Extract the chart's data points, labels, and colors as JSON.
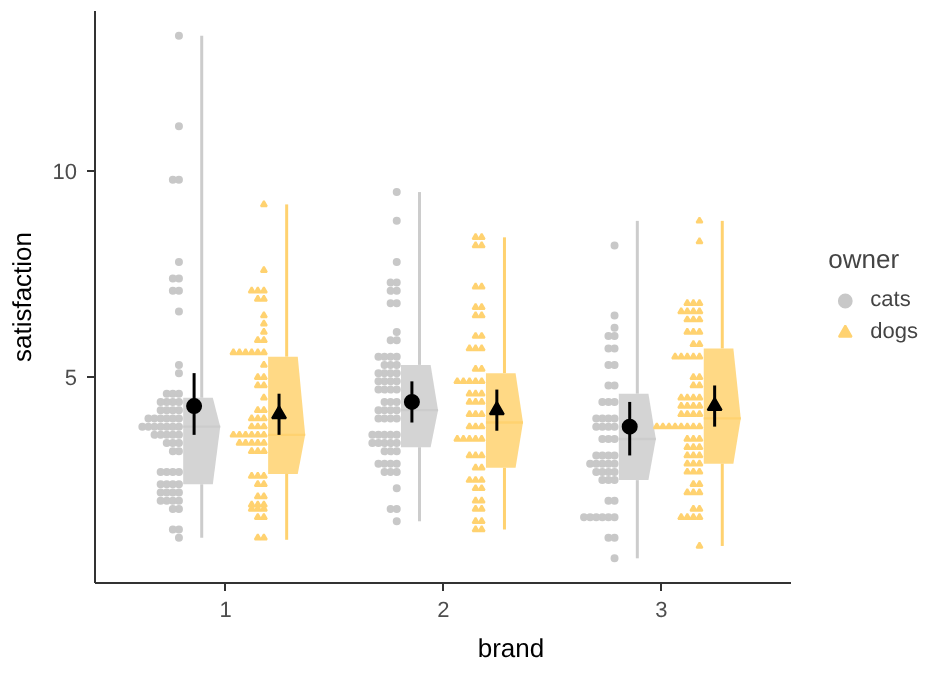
{
  "chart_data": {
    "type": "scatter",
    "xlabel": "brand",
    "ylabel": "satisfaction",
    "legend_title": "owner",
    "legend": "right",
    "grid": false,
    "categories": [
      "1",
      "2",
      "3"
    ],
    "ylim": [
      0,
      13.9
    ],
    "yticks": [
      5,
      10
    ],
    "series": [
      {
        "type": "box",
        "color": "#cccccc",
        "boxes": [
          {
            "low": 1.1,
            "q1": 2.4,
            "median": 3.8,
            "q3": 4.5,
            "high": 13.3
          },
          {
            "low": 1.5,
            "q1": 3.3,
            "median": 4.2,
            "q3": 5.3,
            "high": 9.5
          },
          {
            "low": 0.6,
            "q1": 2.5,
            "median": 3.5,
            "q3": 4.6,
            "high": 8.8
          }
        ]
      },
      {
        "type": "box",
        "color": "#ffd270",
        "boxes": [
          {
            "low": 1.05,
            "q1": 2.65,
            "median": 3.6,
            "q3": 5.5,
            "high": 9.2
          },
          {
            "low": 1.3,
            "q1": 2.8,
            "median": 3.9,
            "q3": 5.1,
            "high": 8.4
          },
          {
            "low": 0.9,
            "q1": 2.9,
            "median": 4.0,
            "q3": 5.7,
            "high": 8.8
          }
        ]
      },
      {
        "name": "cats",
        "color": "#c8c8c8",
        "marker": "circle",
        "values": [
          13.3,
          11.1,
          9.8,
          9.8,
          7.8,
          7.4,
          7.4,
          7.1,
          7.1,
          6.6,
          5.3,
          5.1,
          4.6,
          4.6,
          4.6,
          4.4,
          4.4,
          4.4,
          4.4,
          4.2,
          4.2,
          4.2,
          4.2,
          4.0,
          4.0,
          4.0,
          4.0,
          4.0,
          4.0,
          3.8,
          3.8,
          3.8,
          3.8,
          3.8,
          3.8,
          3.8,
          3.6,
          3.6,
          3.6,
          3.6,
          3.6,
          3.4,
          3.4,
          3.4,
          3.2,
          3.2,
          2.7,
          2.7,
          2.7,
          2.7,
          2.4,
          2.4,
          2.4,
          2.4,
          2.2,
          2.2,
          2.2,
          2.2,
          2.0,
          2.0,
          2.0,
          2.0,
          1.8,
          1.8,
          1.3,
          1.3,
          1.1,
          9.5,
          7.8,
          7.3,
          7.3,
          7.1,
          7.1,
          6.8,
          6.8,
          6.1,
          5.9,
          5.9,
          5.5,
          5.5,
          5.5,
          5.5,
          5.3,
          5.3,
          5.3,
          5.1,
          5.1,
          5.1,
          5.1,
          4.9,
          4.9,
          4.9,
          4.9,
          4.7,
          4.7,
          4.7,
          4.7,
          4.4,
          4.4,
          4.4,
          4.2,
          4.2,
          4.2,
          4.2,
          4.0,
          4.0,
          4.0,
          4.0,
          3.6,
          3.6,
          3.6,
          3.6,
          3.6,
          3.4,
          3.4,
          3.4,
          3.4,
          3.4,
          3.2,
          3.2,
          3.2,
          2.9,
          2.9,
          2.9,
          2.9,
          2.7,
          2.7,
          2.7,
          2.3,
          1.8,
          1.8,
          1.5,
          8.8,
          8.2,
          6.5,
          6.2,
          6.0,
          6.0,
          5.7,
          5.7,
          5.3,
          5.3,
          4.8,
          4.8,
          4.4,
          4.4,
          4.4,
          4.0,
          4.0,
          4.0,
          4.0,
          3.8,
          3.8,
          3.8,
          3.8,
          3.5,
          3.5,
          3.5,
          3.1,
          3.1,
          3.1,
          3.1,
          2.9,
          2.9,
          2.9,
          2.9,
          2.9,
          2.7,
          2.7,
          2.7,
          2.7,
          2.5,
          2.5,
          2.5,
          2.0,
          2.0,
          1.6,
          1.6,
          1.6,
          1.6,
          1.6,
          1.6,
          1.1,
          1.1,
          0.6
        ],
        "x": [
          "1",
          "1",
          "1",
          "1",
          "1",
          "1",
          "1",
          "1",
          "1",
          "1",
          "1",
          "1",
          "1",
          "1",
          "1",
          "1",
          "1",
          "1",
          "1",
          "1",
          "1",
          "1",
          "1",
          "1",
          "1",
          "1",
          "1",
          "1",
          "1",
          "1",
          "1",
          "1",
          "1",
          "1",
          "1",
          "1",
          "1",
          "1",
          "1",
          "1",
          "1",
          "1",
          "1",
          "1",
          "1",
          "1",
          "1",
          "1",
          "1",
          "1",
          "1",
          "1",
          "1",
          "1",
          "1",
          "1",
          "1",
          "1",
          "1",
          "1",
          "1",
          "1",
          "1",
          "1",
          "1",
          "1",
          "1",
          "2",
          "2",
          "2",
          "2",
          "2",
          "2",
          "2",
          "2",
          "2",
          "2",
          "2",
          "2",
          "2",
          "2",
          "2",
          "2",
          "2",
          "2",
          "2",
          "2",
          "2",
          "2",
          "2",
          "2",
          "2",
          "2",
          "2",
          "2",
          "2",
          "2",
          "2",
          "2",
          "2",
          "2",
          "2",
          "2",
          "2",
          "2",
          "2",
          "2",
          "2",
          "2",
          "2",
          "2",
          "2",
          "2",
          "2",
          "2",
          "2",
          "2",
          "2",
          "2",
          "2",
          "2",
          "2",
          "2",
          "2",
          "2",
          "2",
          "2",
          "2",
          "2",
          "2",
          "2",
          "2",
          "2",
          "3",
          "3",
          "3",
          "3",
          "3",
          "3",
          "3",
          "3",
          "3",
          "3",
          "3",
          "3",
          "3",
          "3",
          "3",
          "3",
          "3",
          "3",
          "3",
          "3",
          "3",
          "3",
          "3",
          "3",
          "3",
          "3",
          "3",
          "3",
          "3",
          "3",
          "3",
          "3",
          "3",
          "3",
          "3",
          "3",
          "3",
          "3",
          "3",
          "3",
          "3",
          "3",
          "3",
          "3",
          "3",
          "3",
          "3",
          "3",
          "3",
          "3",
          "3",
          "3"
        ]
      },
      {
        "name": "dogs",
        "color": "#ffd270",
        "marker": "triangle",
        "values": [
          9.2,
          7.6,
          7.1,
          7.1,
          7.1,
          6.9,
          6.9,
          6.5,
          6.3,
          6.1,
          5.9,
          5.9,
          5.6,
          5.6,
          5.6,
          5.6,
          5.6,
          5.6,
          5.3,
          5.0,
          5.0,
          4.8,
          4.8,
          4.5,
          4.2,
          4.2,
          4.0,
          4.0,
          4.0,
          3.8,
          3.8,
          3.8,
          3.6,
          3.6,
          3.6,
          3.6,
          3.6,
          3.6,
          3.4,
          3.4,
          3.4,
          3.4,
          3.4,
          3.2,
          3.2,
          3.2,
          2.6,
          2.6,
          2.6,
          2.4,
          2.4,
          2.1,
          2.1,
          1.9,
          1.9,
          1.9,
          1.8,
          1.8,
          1.8,
          1.6,
          1.6,
          1.1,
          1.1,
          8.4,
          8.4,
          8.2,
          8.2,
          7.2,
          7.2,
          6.7,
          6.7,
          6.5,
          6.5,
          6.0,
          6.0,
          5.7,
          5.7,
          5.7,
          5.2,
          5.2,
          4.9,
          4.9,
          4.9,
          4.9,
          4.9,
          4.6,
          4.6,
          4.6,
          4.4,
          4.4,
          4.4,
          4.1,
          4.1,
          4.1,
          3.8,
          3.8,
          3.8,
          3.5,
          3.5,
          3.5,
          3.5,
          3.5,
          3.1,
          3.1,
          3.1,
          2.8,
          2.8,
          2.5,
          2.5,
          2.5,
          2.3,
          2.3,
          2.0,
          2.0,
          1.8,
          1.8,
          1.5,
          1.5,
          1.3,
          1.3,
          8.8,
          8.3,
          6.8,
          6.8,
          6.8,
          6.6,
          6.6,
          6.6,
          6.6,
          6.4,
          6.4,
          6.4,
          6.1,
          6.1,
          6.1,
          5.8,
          5.8,
          5.5,
          5.5,
          5.5,
          5.5,
          5.5,
          5.0,
          5.0,
          4.8,
          4.8,
          4.5,
          4.5,
          4.5,
          4.5,
          4.3,
          4.3,
          4.3,
          4.3,
          4.1,
          4.1,
          4.1,
          4.1,
          3.8,
          3.8,
          3.8,
          3.8,
          3.8,
          3.8,
          3.8,
          3.8,
          3.5,
          3.5,
          3.5,
          3.3,
          3.3,
          3.3,
          3.1,
          3.1,
          3.1,
          2.9,
          2.9,
          2.9,
          2.7,
          2.7,
          2.7,
          2.4,
          2.4,
          2.2,
          2.2,
          2.2,
          1.8,
          1.8,
          1.6,
          1.6,
          1.6,
          1.6,
          0.9
        ],
        "x": [
          "1",
          "1",
          "1",
          "1",
          "1",
          "1",
          "1",
          "1",
          "1",
          "1",
          "1",
          "1",
          "1",
          "1",
          "1",
          "1",
          "1",
          "1",
          "1",
          "1",
          "1",
          "1",
          "1",
          "1",
          "1",
          "1",
          "1",
          "1",
          "1",
          "1",
          "1",
          "1",
          "1",
          "1",
          "1",
          "1",
          "1",
          "1",
          "1",
          "1",
          "1",
          "1",
          "1",
          "1",
          "1",
          "1",
          "1",
          "1",
          "1",
          "1",
          "1",
          "1",
          "1",
          "1",
          "1",
          "1",
          "1",
          "1",
          "1",
          "1",
          "1",
          "1",
          "1",
          "2",
          "2",
          "2",
          "2",
          "2",
          "2",
          "2",
          "2",
          "2",
          "2",
          "2",
          "2",
          "2",
          "2",
          "2",
          "2",
          "2",
          "2",
          "2",
          "2",
          "2",
          "2",
          "2",
          "2",
          "2",
          "2",
          "2",
          "2",
          "2",
          "2",
          "2",
          "2",
          "2",
          "2",
          "2",
          "2",
          "2",
          "2",
          "2",
          "2",
          "2",
          "2",
          "2",
          "2",
          "2",
          "2",
          "2",
          "2",
          "2",
          "2",
          "2",
          "2",
          "2",
          "2",
          "2",
          "2",
          "2",
          "3",
          "3",
          "3",
          "3",
          "3",
          "3",
          "3",
          "3",
          "3",
          "3",
          "3",
          "3",
          "3",
          "3",
          "3",
          "3",
          "3",
          "3",
          "3",
          "3",
          "3",
          "3",
          "3",
          "3",
          "3",
          "3",
          "3",
          "3",
          "3",
          "3",
          "3",
          "3",
          "3",
          "3",
          "3",
          "3",
          "3",
          "3",
          "3",
          "3",
          "3",
          "3",
          "3",
          "3",
          "3",
          "3",
          "3",
          "3",
          "3",
          "3",
          "3",
          "3",
          "3",
          "3",
          "3",
          "3",
          "3",
          "3",
          "3",
          "3",
          "3",
          "3",
          "3",
          "3",
          "3",
          "3",
          "3",
          "3",
          "3",
          "3",
          "3",
          "3",
          "3"
        ]
      },
      {
        "color": "#000000",
        "marker": "circle",
        "x": [
          "1",
          "2",
          "3"
        ],
        "values": [
          4.3,
          4.4,
          3.8
        ],
        "errors": [
          [
            3.6,
            5.1
          ],
          [
            3.9,
            4.9
          ],
          [
            3.1,
            4.4
          ]
        ]
      },
      {
        "color": "#000000",
        "marker": "triangle",
        "x": [
          "1",
          "2",
          "3"
        ],
        "values": [
          4.1,
          4.2,
          4.3
        ],
        "errors": [
          [
            3.6,
            4.6
          ],
          [
            3.7,
            4.7
          ],
          [
            3.8,
            4.8
          ]
        ]
      }
    ]
  }
}
